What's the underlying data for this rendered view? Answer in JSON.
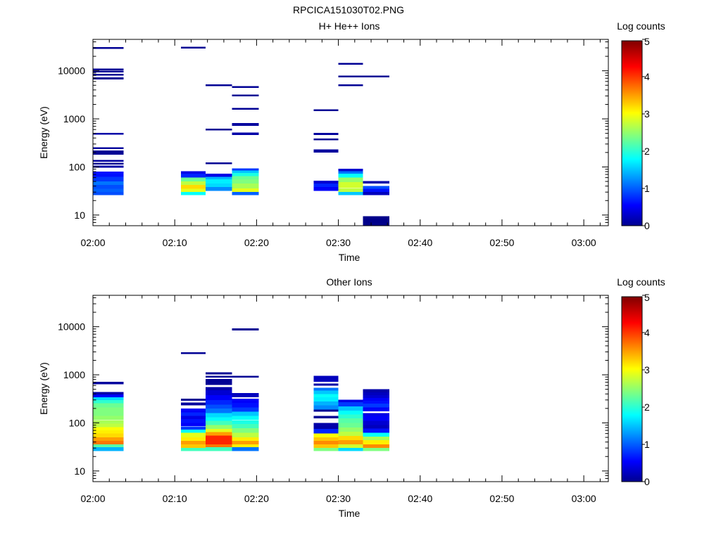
{
  "page_title": "RPCICA151030T02.PNG",
  "chart_data": [
    {
      "type": "heatmap",
      "title": "H+ He++ Ions",
      "xlabel": "Time",
      "ylabel": "Energy (eV)",
      "x_ticks": [
        "02:00",
        "02:10",
        "02:20",
        "02:30",
        "02:40",
        "02:50",
        "03:00"
      ],
      "xlim": [
        "02:00",
        "03:03"
      ],
      "y_scale": "log",
      "y_ticks": [
        "10",
        "100",
        "1000",
        "10000"
      ],
      "ylim": [
        6,
        45000
      ],
      "colorbar": {
        "label": "Log counts",
        "ticks": [
          "0",
          "1",
          "2",
          "3",
          "4",
          "5"
        ],
        "range": [
          0,
          5
        ],
        "colormap": "jet"
      },
      "columns": [
        {
          "t0": "02:00:00",
          "t1": "02:03:45",
          "cells": [
            [
              26,
              30,
              1.0
            ],
            [
              30,
              35,
              1.1
            ],
            [
              35,
              42,
              1.0
            ],
            [
              42,
              50,
              1.2
            ],
            [
              50,
              62,
              0.9
            ],
            [
              62,
              80,
              0.7
            ],
            [
              96,
              106,
              0.2
            ],
            [
              112,
              122,
              0.1
            ],
            [
              130,
              140,
              0.15
            ],
            [
              180,
              200,
              0.1
            ],
            [
              200,
              220,
              0.1
            ],
            [
              235,
              255,
              0.15
            ],
            [
              470,
              510,
              0.2
            ],
            [
              6600,
              7300,
              0.1
            ],
            [
              8000,
              8700,
              0.1
            ],
            [
              9200,
              10000,
              0.1
            ],
            [
              10300,
              11000,
              0.1
            ],
            [
              29000,
              31000,
              0.1
            ]
          ]
        },
        {
          "t0": "02:10:45",
          "t1": "02:13:45",
          "cells": [
            [
              26,
              30,
              1.9
            ],
            [
              30,
              35,
              3.0
            ],
            [
              35,
              42,
              3.3
            ],
            [
              42,
              50,
              2.8
            ],
            [
              50,
              60,
              2.4
            ],
            [
              60,
              72,
              0.8
            ],
            [
              72,
              82,
              0.5
            ],
            [
              29000,
              31500,
              0.1
            ]
          ]
        },
        {
          "t0": "02:13:45",
          "t1": "02:17:00",
          "cells": [
            [
              32,
              38,
              1.3
            ],
            [
              38,
              45,
              1.7
            ],
            [
              45,
              55,
              1.8
            ],
            [
              55,
              62,
              1.5
            ],
            [
              62,
              72,
              0.5
            ],
            [
              115,
              125,
              0.1
            ],
            [
              580,
              630,
              0.1
            ],
            [
              4800,
              5200,
              0.1
            ]
          ]
        },
        {
          "t0": "02:17:00",
          "t1": "02:20:15",
          "cells": [
            [
              26,
              30,
              1.1
            ],
            [
              30,
              36,
              3.0
            ],
            [
              36,
              45,
              2.7
            ],
            [
              45,
              55,
              2.5
            ],
            [
              55,
              65,
              2.4
            ],
            [
              65,
              75,
              2.0
            ],
            [
              75,
              84,
              1.6
            ],
            [
              84,
              94,
              0.9
            ],
            [
              460,
              520,
              0.2
            ],
            [
              720,
              820,
              0.15
            ],
            [
              1550,
              1680,
              0.1
            ],
            [
              2950,
              3200,
              0.1
            ],
            [
              4400,
              4800,
              0.1
            ]
          ]
        },
        {
          "t0": "02:27:00",
          "t1": "02:30:00",
          "cells": [
            [
              32,
              38,
              0.6
            ],
            [
              38,
              45,
              0.8
            ],
            [
              45,
              52,
              0.4
            ],
            [
              200,
              230,
              0.15
            ],
            [
              360,
              390,
              0.1
            ],
            [
              460,
              510,
              0.15
            ],
            [
              1450,
              1580,
              0.1
            ]
          ]
        },
        {
          "t0": "02:30:00",
          "t1": "02:33:00",
          "cells": [
            [
              26,
              30,
              1.6
            ],
            [
              30,
              36,
              2.8
            ],
            [
              36,
              48,
              2.9
            ],
            [
              48,
              60,
              2.6
            ],
            [
              60,
              72,
              1.9
            ],
            [
              72,
              82,
              1.2
            ],
            [
              82,
              92,
              0.4
            ],
            [
              4800,
              5200,
              0.1
            ],
            [
              7300,
              7900,
              0.1
            ],
            [
              13500,
              14500,
              0.1
            ]
          ]
        },
        {
          "t0": "02:33:00",
          "t1": "02:36:15",
          "cells": [
            [
              5,
              9.5,
              0.05
            ],
            [
              26,
              30,
              0.3
            ],
            [
              30,
              35,
              0.7
            ],
            [
              35,
              40,
              1.0
            ],
            [
              45,
              51,
              0.2
            ],
            [
              7300,
              7900,
              0.1
            ]
          ]
        }
      ]
    },
    {
      "type": "heatmap",
      "title": "Other Ions",
      "xlabel": "Time",
      "ylabel": "Energy (eV)",
      "x_ticks": [
        "02:00",
        "02:10",
        "02:20",
        "02:30",
        "02:40",
        "02:50",
        "03:00"
      ],
      "xlim": [
        "02:00",
        "03:03"
      ],
      "y_scale": "log",
      "y_ticks": [
        "10",
        "100",
        "1000",
        "10000"
      ],
      "ylim": [
        6,
        45000
      ],
      "colorbar": {
        "label": "Log counts",
        "ticks": [
          "0",
          "1",
          "2",
          "3",
          "4",
          "5"
        ],
        "range": [
          0,
          5
        ],
        "colormap": "jet"
      },
      "columns": [
        {
          "t0": "02:00:00",
          "t1": "02:03:45",
          "cells": [
            [
              26,
              31,
              1.5
            ],
            [
              31,
              36,
              2.3
            ],
            [
              36,
              42,
              3.8
            ],
            [
              42,
              50,
              3.6
            ],
            [
              50,
              60,
              3.3
            ],
            [
              60,
              70,
              3.2
            ],
            [
              70,
              82,
              3.1
            ],
            [
              82,
              96,
              2.8
            ],
            [
              96,
              115,
              2.7
            ],
            [
              115,
              140,
              2.6
            ],
            [
              140,
              175,
              2.5
            ],
            [
              175,
              210,
              2.5
            ],
            [
              210,
              255,
              2.4
            ],
            [
              255,
              300,
              2.1
            ],
            [
              300,
              340,
              1.7
            ],
            [
              340,
              390,
              0.6
            ],
            [
              390,
              440,
              0.2
            ],
            [
              640,
              720,
              0.15
            ]
          ]
        },
        {
          "t0": "02:10:45",
          "t1": "02:13:45",
          "cells": [
            [
              26,
              30,
              2.2
            ],
            [
              30,
              36,
              3.4
            ],
            [
              36,
              42,
              3.6
            ],
            [
              42,
              50,
              3.2
            ],
            [
              50,
              62,
              3.0
            ],
            [
              62,
              72,
              1.9
            ],
            [
              72,
              85,
              0.9
            ],
            [
              85,
              100,
              0.6
            ],
            [
              100,
              120,
              0.7
            ],
            [
              120,
              140,
              0.5
            ],
            [
              140,
              165,
              0.8
            ],
            [
              165,
              200,
              0.6
            ],
            [
              230,
              265,
              0.15
            ],
            [
              290,
              320,
              0.1
            ],
            [
              2700,
              2950,
              0.1
            ]
          ]
        },
        {
          "t0": "02:13:45",
          "t1": "02:17:00",
          "cells": [
            [
              26,
              31,
              2.2
            ],
            [
              31,
              36,
              3.8
            ],
            [
              36,
              44,
              4.2
            ],
            [
              44,
              54,
              4.2
            ],
            [
              54,
              64,
              3.6
            ],
            [
              64,
              75,
              3.0
            ],
            [
              75,
              90,
              2.6
            ],
            [
              90,
              110,
              2.2
            ],
            [
              110,
              130,
              1.9
            ],
            [
              130,
              160,
              1.7
            ],
            [
              160,
              200,
              1.2
            ],
            [
              200,
              240,
              1.0
            ],
            [
              240,
              300,
              0.8
            ],
            [
              300,
              380,
              0.6
            ],
            [
              380,
              480,
              0.4
            ],
            [
              480,
              560,
              0.2
            ],
            [
              620,
              820,
              0.1
            ],
            [
              880,
              960,
              0.1
            ],
            [
              1020,
              1120,
              0.1
            ]
          ]
        },
        {
          "t0": "02:17:00",
          "t1": "02:20:15",
          "cells": [
            [
              26,
              31,
              1.2
            ],
            [
              31,
              36,
              3.2
            ],
            [
              36,
              42,
              3.6
            ],
            [
              42,
              50,
              3.2
            ],
            [
              50,
              62,
              2.8
            ],
            [
              62,
              78,
              2.5
            ],
            [
              78,
              95,
              2.2
            ],
            [
              95,
              115,
              2.0
            ],
            [
              115,
              140,
              1.9
            ],
            [
              140,
              170,
              1.6
            ],
            [
              170,
              210,
              0.9
            ],
            [
              210,
              260,
              0.7
            ],
            [
              260,
              320,
              0.6
            ],
            [
              340,
              420,
              0.3
            ],
            [
              880,
              960,
              0.1
            ],
            [
              8400,
              9200,
              0.1
            ]
          ]
        },
        {
          "t0": "02:27:00",
          "t1": "02:30:00",
          "cells": [
            [
              26,
              30,
              2.5
            ],
            [
              30,
              36,
              3.4
            ],
            [
              36,
              42,
              3.7
            ],
            [
              42,
              50,
              3.4
            ],
            [
              50,
              60,
              3.1
            ],
            [
              60,
              75,
              0.8
            ],
            [
              75,
              100,
              0.2
            ],
            [
              125,
              140,
              0.1
            ],
            [
              170,
              190,
              0.1
            ],
            [
              190,
              230,
              1.3
            ],
            [
              230,
              280,
              1.5
            ],
            [
              280,
              340,
              1.8
            ],
            [
              340,
              400,
              1.9
            ],
            [
              400,
              470,
              1.6
            ],
            [
              470,
              540,
              1.2
            ],
            [
              590,
              660,
              0.2
            ],
            [
              720,
              950,
              0.3
            ]
          ]
        },
        {
          "t0": "02:30:00",
          "t1": "02:33:00",
          "cells": [
            [
              26,
              30,
              1.7
            ],
            [
              30,
              36,
              2.9
            ],
            [
              36,
              44,
              3.6
            ],
            [
              44,
              54,
              3.3
            ],
            [
              54,
              66,
              2.8
            ],
            [
              66,
              80,
              2.6
            ],
            [
              80,
              100,
              2.4
            ],
            [
              100,
              125,
              2.3
            ],
            [
              125,
              150,
              2.1
            ],
            [
              150,
              180,
              1.9
            ],
            [
              180,
              220,
              1.6
            ],
            [
              220,
              270,
              0.9
            ],
            [
              270,
              305,
              0.5
            ]
          ]
        },
        {
          "t0": "02:33:00",
          "t1": "02:36:15",
          "cells": [
            [
              26,
              30,
              2.5
            ],
            [
              30,
              36,
              3.7
            ],
            [
              36,
              44,
              3.2
            ],
            [
              44,
              52,
              2.7
            ],
            [
              52,
              62,
              1.9
            ],
            [
              62,
              76,
              0.7
            ],
            [
              76,
              90,
              0.3
            ],
            [
              90,
              110,
              0.4
            ],
            [
              110,
              140,
              0.6
            ],
            [
              140,
              160,
              0.5
            ],
            [
              175,
              210,
              0.6
            ],
            [
              210,
              250,
              0.9
            ],
            [
              250,
              290,
              0.7
            ],
            [
              290,
              330,
              0.6
            ],
            [
              330,
              380,
              0.4
            ],
            [
              380,
              430,
              0.3
            ],
            [
              430,
              500,
              0.2
            ]
          ]
        }
      ]
    }
  ]
}
